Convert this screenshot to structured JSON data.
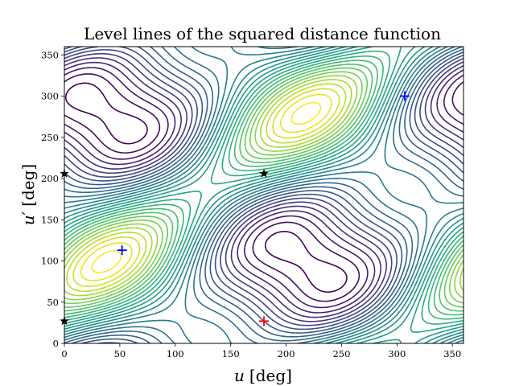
{
  "chart_data": {
    "type": "contour",
    "title": "Level lines of the squared distance function",
    "xlabel_symbol": "u",
    "xlabel_unit": "[deg]",
    "ylabel_symbol": "u′",
    "ylabel_unit": "[deg]",
    "xlim": [
      0,
      360
    ],
    "ylim": [
      0,
      360
    ],
    "xticks": [
      0,
      50,
      100,
      150,
      200,
      250,
      300,
      350
    ],
    "yticks": [
      0,
      50,
      100,
      150,
      200,
      250,
      300,
      350
    ],
    "colormap": "viridis",
    "minima": [
      {
        "u": 52,
        "u_prime": 113,
        "color": "#0000ff",
        "marker": "+"
      },
      {
        "u": 307,
        "u_prime": 300,
        "color": "#0000ff",
        "marker": "+"
      }
    ],
    "maximum": {
      "u": 180,
      "u_prime": 27,
      "color": "#ff0000",
      "marker": "+"
    },
    "saddles": [
      {
        "u": 180,
        "u_prime": 206,
        "marker": "star"
      },
      {
        "u": 0,
        "u_prime": 206,
        "marker": "star"
      },
      {
        "u": 0,
        "u_prime": 27,
        "marker": "star"
      }
    ]
  }
}
